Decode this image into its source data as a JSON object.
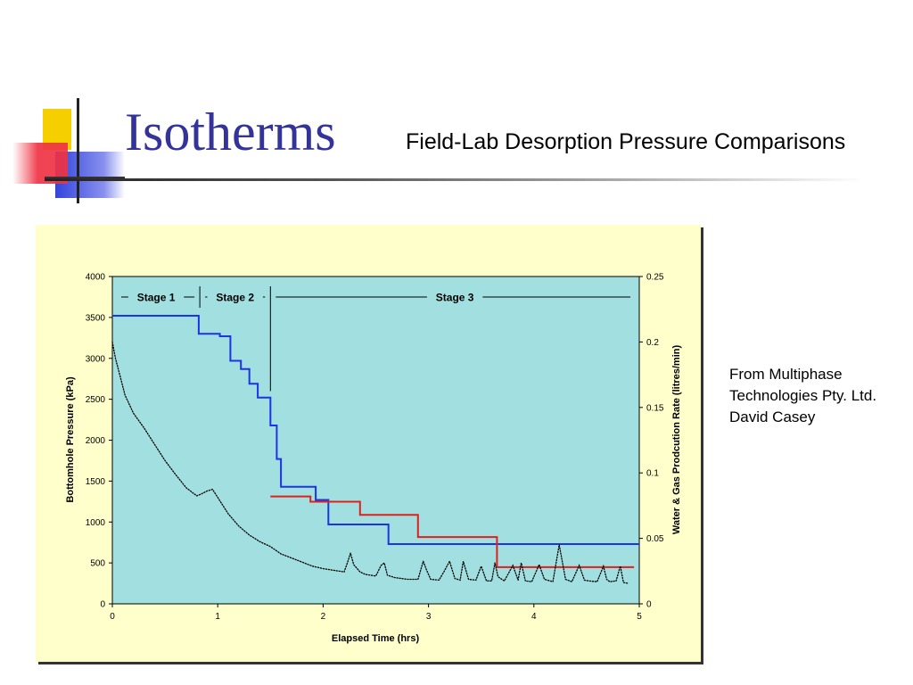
{
  "slide": {
    "title": "Isotherms",
    "subtitle": "Field-Lab Desorption Pressure Comparisons"
  },
  "credit": {
    "lines": [
      "From Multiphase",
      "Technologies Pty. Ltd.",
      "David Casey"
    ]
  },
  "colors": {
    "title": "#33339a",
    "panel": "#ffffcc",
    "plot_area": "#a1dfe0",
    "blue_series": "#1c34e6",
    "red_series": "#e0201c",
    "logo_yellow": "#f6cf00",
    "logo_red": "#ee3344",
    "logo_blue": "#3344dd"
  },
  "chart_data": {
    "type": "line",
    "xlabel": "Elapsed Time (hrs)",
    "ylabel": "Bottomhole Pressure (kPa)",
    "y2label": "Water & Gas Prodcution Rate (litres/min)",
    "xlim": [
      0,
      5
    ],
    "ylim": [
      0,
      4000
    ],
    "y2lim": [
      0,
      0.25
    ],
    "xticks": [
      "0",
      "1",
      "2",
      "3",
      "4",
      "5"
    ],
    "yticks": [
      "0",
      "500",
      "1000",
      "1500",
      "2000",
      "2500",
      "3000",
      "3500",
      "4000"
    ],
    "y2ticks": [
      "0",
      "0.05",
      "0.1",
      "0.15",
      "0.2",
      "0.25"
    ],
    "grid": false,
    "stages": [
      {
        "label": "Stage 1",
        "start": 0,
        "end": 0.83
      },
      {
        "label": "Stage 2",
        "start": 0.83,
        "end": 1.5
      },
      {
        "label": "Stage 3",
        "start": 1.5,
        "end": 5
      }
    ],
    "series": [
      {
        "axis": "left",
        "style": "step",
        "x": [
          0,
          0.82,
          0.82,
          1.02,
          1.02,
          1.12,
          1.12,
          1.22,
          1.22,
          1.3,
          1.3,
          1.38,
          1.38,
          1.5,
          1.5,
          1.56,
          1.56,
          1.6,
          1.6,
          1.93,
          1.93,
          2.05,
          2.05,
          2.62,
          2.62,
          5
        ],
        "y": [
          3520,
          3520,
          3300,
          3300,
          3270,
          3270,
          2970,
          2970,
          2870,
          2870,
          2690,
          2690,
          2520,
          2520,
          2180,
          2180,
          1770,
          1770,
          1430,
          1430,
          1270,
          1270,
          970,
          970,
          730,
          730
        ]
      },
      {
        "axis": "right",
        "style": "step",
        "x": [
          1.5,
          1.88,
          1.88,
          2.35,
          2.35,
          2.9,
          2.9,
          3.65,
          3.65,
          4.95
        ],
        "y": [
          0.082,
          0.082,
          0.078,
          0.078,
          0.068,
          0.068,
          0.051,
          0.051,
          0.028,
          0.028
        ]
      },
      {
        "axis": "left",
        "style": "dotted",
        "x": [
          0.0,
          0.03,
          0.07,
          0.12,
          0.2,
          0.3,
          0.4,
          0.5,
          0.6,
          0.7,
          0.8,
          0.84,
          0.9,
          0.95,
          1.0,
          1.1,
          1.2,
          1.3,
          1.4,
          1.5,
          1.6,
          1.7,
          1.8,
          1.9,
          2.0,
          2.1,
          2.2,
          2.23,
          2.26,
          2.29,
          2.35,
          2.4,
          2.5,
          2.55,
          2.58,
          2.61,
          2.68,
          2.8,
          2.9,
          2.95,
          2.98,
          3.02,
          3.1,
          3.15,
          3.2,
          3.25,
          3.3,
          3.33,
          3.38,
          3.45,
          3.5,
          3.55,
          3.6,
          3.63,
          3.66,
          3.72,
          3.8,
          3.85,
          3.88,
          3.92,
          3.98,
          4.05,
          4.1,
          4.18,
          4.24,
          4.3,
          4.36,
          4.43,
          4.48,
          4.52,
          4.6,
          4.66,
          4.69,
          4.72,
          4.78,
          4.82,
          4.85,
          4.9
        ],
        "y": [
          3200,
          3000,
          2800,
          2550,
          2330,
          2150,
          1950,
          1750,
          1580,
          1420,
          1320,
          1340,
          1380,
          1400,
          1300,
          1100,
          950,
          840,
          760,
          700,
          610,
          560,
          510,
          460,
          430,
          410,
          390,
          500,
          620,
          480,
          390,
          360,
          340,
          470,
          500,
          350,
          320,
          300,
          300,
          520,
          420,
          300,
          290,
          400,
          520,
          310,
          290,
          520,
          300,
          290,
          460,
          280,
          280,
          500,
          330,
          280,
          470,
          290,
          500,
          280,
          270,
          480,
          300,
          270,
          720,
          300,
          270,
          470,
          290,
          280,
          270,
          460,
          300,
          270,
          280,
          460,
          260,
          250
        ]
      }
    ]
  }
}
